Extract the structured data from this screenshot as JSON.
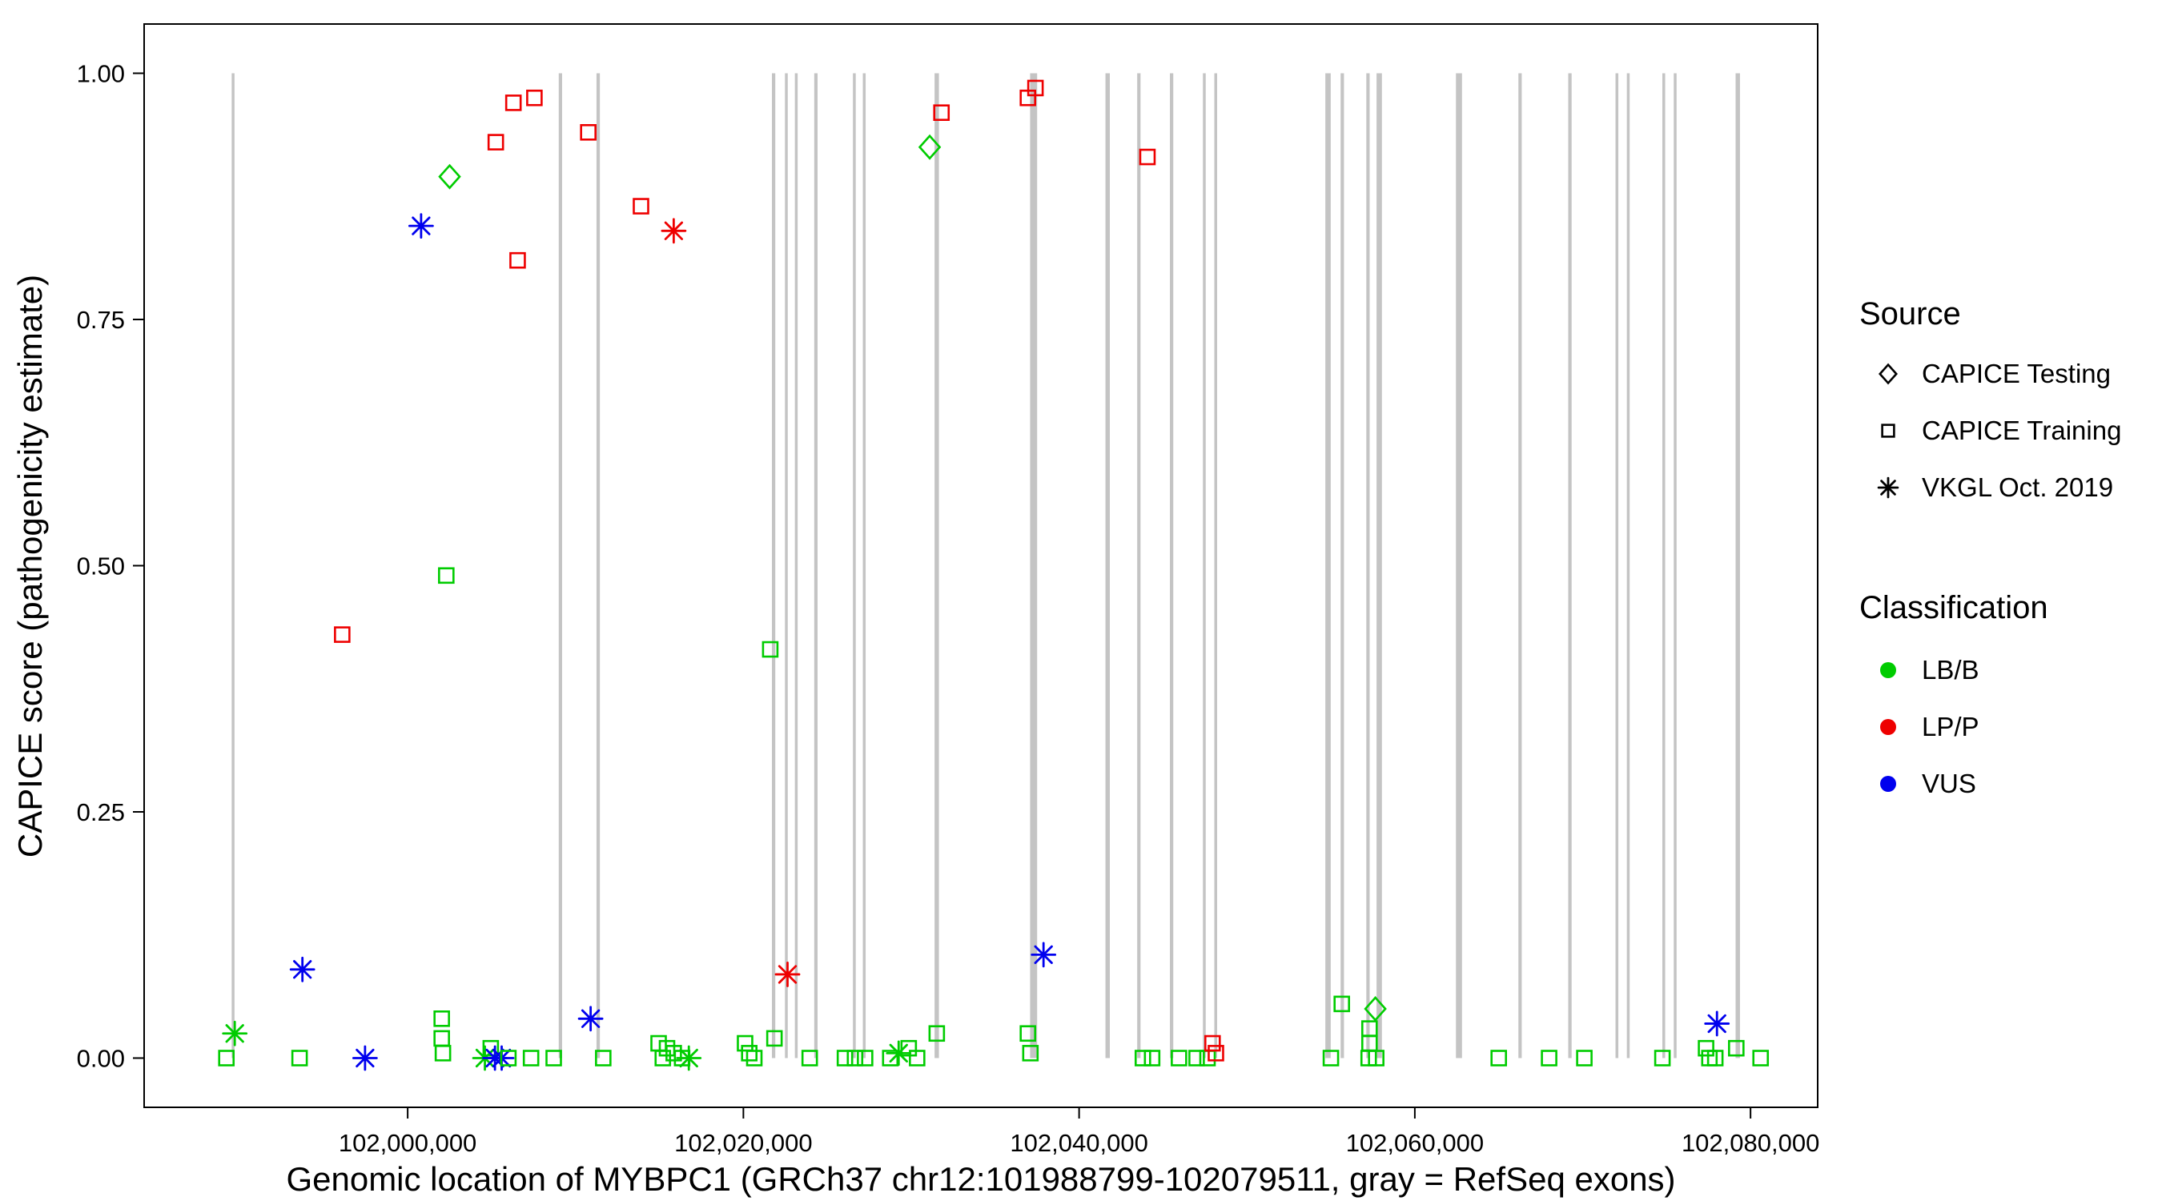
{
  "legend": {
    "source": {
      "title": "Source",
      "items": [
        {
          "label": "CAPICE Testing",
          "shape": "diamond"
        },
        {
          "label": "CAPICE Training",
          "shape": "square"
        },
        {
          "label": "VKGL Oct. 2019",
          "shape": "asterisk"
        }
      ]
    },
    "classification": {
      "title": "Classification",
      "items": [
        {
          "label": "LB/B",
          "color": "#00CC00"
        },
        {
          "label": "LP/P",
          "color": "#EE0000"
        },
        {
          "label": "VUS",
          "color": "#0000EE"
        }
      ]
    }
  },
  "chart_data": {
    "type": "scatter",
    "title": "",
    "xlabel": "Genomic location of MYBPC1 (GRCh37 chr12:101988799-102079511, gray = RefSeq exons)",
    "ylabel": "CAPICE score (pathogenicity estimate)",
    "xlim": [
      101984300,
      102084000
    ],
    "ylim": [
      -0.05,
      1.05
    ],
    "x_ticks": [
      {
        "value": 102000000,
        "label": "102,000,000"
      },
      {
        "value": 102020000,
        "label": "102,020,000"
      },
      {
        "value": 102040000,
        "label": "102,040,000"
      },
      {
        "value": 102060000,
        "label": "102,060,000"
      },
      {
        "value": 102080000,
        "label": "102,080,000"
      }
    ],
    "y_ticks": [
      {
        "value": 0.0,
        "label": "0.00"
      },
      {
        "value": 0.25,
        "label": "0.25"
      },
      {
        "value": 0.5,
        "label": "0.50"
      },
      {
        "value": 0.75,
        "label": "0.75"
      },
      {
        "value": 1.0,
        "label": "1.00"
      }
    ],
    "grid": false,
    "legend_position": "right",
    "exon_color": "#C4C4C4",
    "class_colors": {
      "LB/B": "#00CC00",
      "LP/P": "#EE0000",
      "VUS": "#0000EE"
    },
    "shape_by_source": {
      "testing": "diamond",
      "training": "square",
      "vkgl": "asterisk"
    },
    "source_labels": {
      "testing": "CAPICE Testing",
      "training": "CAPICE Training",
      "vkgl": "VKGL Oct. 2019"
    },
    "exons_format": [
      "x_bp",
      "width_bp"
    ],
    "exons": [
      [
        101989600,
        160
      ],
      [
        102009100,
        200
      ],
      [
        102011350,
        200
      ],
      [
        102021800,
        200
      ],
      [
        102022560,
        160
      ],
      [
        102023150,
        160
      ],
      [
        102024320,
        200
      ],
      [
        102026610,
        160
      ],
      [
        102027200,
        160
      ],
      [
        102031520,
        260
      ],
      [
        102037290,
        420
      ],
      [
        102041700,
        260
      ],
      [
        102043560,
        200
      ],
      [
        102045510,
        200
      ],
      [
        102047460,
        160
      ],
      [
        102048140,
        160
      ],
      [
        102054830,
        320
      ],
      [
        102055680,
        200
      ],
      [
        102057210,
        200
      ],
      [
        102057880,
        320
      ],
      [
        102062630,
        360
      ],
      [
        102066270,
        200
      ],
      [
        102069240,
        200
      ],
      [
        102072040,
        160
      ],
      [
        102072715,
        160
      ],
      [
        102074830,
        160
      ],
      [
        102075510,
        160
      ],
      [
        102079240,
        260
      ]
    ],
    "points_format": [
      "x_bp",
      "capice_score",
      "classification",
      "source"
    ],
    "points": [
      [
        101996100,
        0.43,
        "LP/P",
        "training"
      ],
      [
        102000800,
        0.845,
        "VUS",
        "vkgl"
      ],
      [
        102002500,
        0.895,
        "LB/B",
        "testing"
      ],
      [
        102002300,
        0.49,
        "LB/B",
        "training"
      ],
      [
        102005250,
        0.93,
        "LP/P",
        "training"
      ],
      [
        102006300,
        0.97,
        "LP/P",
        "training"
      ],
      [
        102007550,
        0.975,
        "LP/P",
        "training"
      ],
      [
        102006550,
        0.81,
        "LP/P",
        "training"
      ],
      [
        102010760,
        0.94,
        "LP/P",
        "training"
      ],
      [
        102013900,
        0.865,
        "LP/P",
        "training"
      ],
      [
        102015850,
        0.84,
        "LP/P",
        "vkgl"
      ],
      [
        102021600,
        0.415,
        "LB/B",
        "training"
      ],
      [
        102022630,
        0.085,
        "LP/P",
        "vkgl"
      ],
      [
        102031100,
        0.925,
        "LB/B",
        "testing"
      ],
      [
        102031800,
        0.96,
        "LP/P",
        "training"
      ],
      [
        102036950,
        0.975,
        "LP/P",
        "training"
      ],
      [
        102037400,
        0.985,
        "LP/P",
        "training"
      ],
      [
        102037880,
        0.105,
        "VUS",
        "vkgl"
      ],
      [
        102044070,
        0.915,
        "LP/P",
        "training"
      ],
      [
        101993730,
        0.09,
        "VUS",
        "vkgl"
      ],
      [
        101989200,
        0.0,
        "LB/B",
        "training"
      ],
      [
        101989700,
        0.025,
        "LB/B",
        "vkgl"
      ],
      [
        101993560,
        0.0,
        "LB/B",
        "training"
      ],
      [
        101997460,
        0.0,
        "VUS",
        "vkgl"
      ],
      [
        102002030,
        0.04,
        "LB/B",
        "training"
      ],
      [
        102002030,
        0.02,
        "LB/B",
        "training"
      ],
      [
        102002100,
        0.005,
        "LB/B",
        "training"
      ],
      [
        102004600,
        0.0,
        "LB/B",
        "vkgl"
      ],
      [
        102004950,
        0.01,
        "LB/B",
        "training"
      ],
      [
        102005200,
        0.0,
        "VUS",
        "vkgl"
      ],
      [
        102005600,
        0.0,
        "VUS",
        "vkgl"
      ],
      [
        102006000,
        0.0,
        "LB/B",
        "training"
      ],
      [
        102007350,
        0.0,
        "LB/B",
        "training"
      ],
      [
        102008700,
        0.0,
        "LB/B",
        "training"
      ],
      [
        102010900,
        0.04,
        "VUS",
        "vkgl"
      ],
      [
        102011650,
        0.0,
        "LB/B",
        "training"
      ],
      [
        102014950,
        0.015,
        "LB/B",
        "training"
      ],
      [
        102015200,
        0.0,
        "LB/B",
        "training"
      ],
      [
        102015450,
        0.01,
        "LB/B",
        "training"
      ],
      [
        102015850,
        0.005,
        "LB/B",
        "training"
      ],
      [
        102016350,
        0.0,
        "LB/B",
        "training"
      ],
      [
        102016750,
        0.0,
        "LB/B",
        "vkgl"
      ],
      [
        102020100,
        0.015,
        "LB/B",
        "training"
      ],
      [
        102020350,
        0.005,
        "LB/B",
        "training"
      ],
      [
        102020650,
        0.0,
        "LB/B",
        "training"
      ],
      [
        102021850,
        0.02,
        "LB/B",
        "training"
      ],
      [
        102023950,
        0.0,
        "LB/B",
        "training"
      ],
      [
        102026050,
        0.0,
        "LB/B",
        "training"
      ],
      [
        102026650,
        0.0,
        "LB/B",
        "training"
      ],
      [
        102027250,
        0.0,
        "LB/B",
        "training"
      ],
      [
        102028750,
        0.0,
        "LB/B",
        "training"
      ],
      [
        102029250,
        0.005,
        "LB/B",
        "vkgl"
      ],
      [
        102029850,
        0.01,
        "LB/B",
        "training"
      ],
      [
        102030350,
        0.0,
        "LB/B",
        "training"
      ],
      [
        102031520,
        0.025,
        "LB/B",
        "training"
      ],
      [
        102036950,
        0.025,
        "LB/B",
        "training"
      ],
      [
        102037100,
        0.005,
        "LB/B",
        "training"
      ],
      [
        102043800,
        0.0,
        "LB/B",
        "training"
      ],
      [
        102044350,
        0.0,
        "LB/B",
        "training"
      ],
      [
        102045950,
        0.0,
        "LB/B",
        "training"
      ],
      [
        102047000,
        0.0,
        "LB/B",
        "training"
      ],
      [
        102047650,
        0.0,
        "LB/B",
        "training"
      ],
      [
        102047950,
        0.015,
        "LP/P",
        "training"
      ],
      [
        102048150,
        0.005,
        "LP/P",
        "training"
      ],
      [
        102055000,
        0.0,
        "LB/B",
        "training"
      ],
      [
        102055650,
        0.055,
        "LB/B",
        "training"
      ],
      [
        102057300,
        0.03,
        "LB/B",
        "training"
      ],
      [
        102057300,
        0.015,
        "LB/B",
        "training"
      ],
      [
        102057250,
        0.0,
        "LB/B",
        "training"
      ],
      [
        102057700,
        0.0,
        "LB/B",
        "training"
      ],
      [
        102057650,
        0.05,
        "LB/B",
        "testing"
      ],
      [
        102065000,
        0.0,
        "LB/B",
        "training"
      ],
      [
        102068000,
        0.0,
        "LB/B",
        "training"
      ],
      [
        102070100,
        0.0,
        "LB/B",
        "training"
      ],
      [
        102074750,
        0.0,
        "LB/B",
        "training"
      ],
      [
        102077350,
        0.01,
        "LB/B",
        "training"
      ],
      [
        102077550,
        0.0,
        "LB/B",
        "training"
      ],
      [
        102077900,
        0.0,
        "LB/B",
        "training"
      ],
      [
        102078000,
        0.035,
        "VUS",
        "vkgl"
      ],
      [
        102079150,
        0.01,
        "LB/B",
        "training"
      ],
      [
        102080600,
        0.0,
        "LB/B",
        "training"
      ]
    ]
  }
}
